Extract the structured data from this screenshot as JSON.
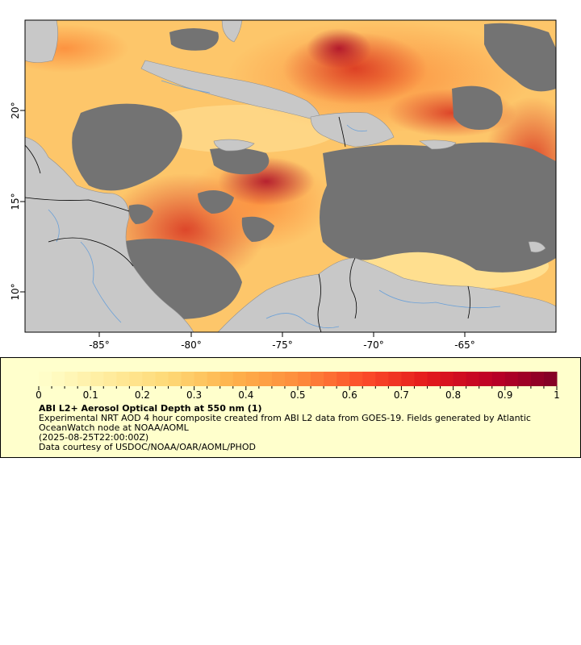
{
  "map": {
    "lon_ticks": [
      "-85°",
      "-80°",
      "-75°",
      "-70°",
      "-65°"
    ],
    "lat_ticks": [
      "10°",
      "15°",
      "20°"
    ],
    "colors": {
      "land": "#c8c8c8",
      "no_data": "#737373",
      "rivers": "#6aa0d8",
      "borders": "#000000",
      "frame": "#000000"
    }
  },
  "legend": {
    "title": "ABI L2+ Aerosol Optical Depth at 550 nm (1)",
    "line1": "Experimental NRT AOD 4 hour composite created from ABI L2 data from GOES-19. Fields generated by Atlantic OceanWatch node at NOAA/AOML",
    "line2": "(2025-08-25T22:00:00Z)",
    "line3": "Data courtesy of USDOC/NOAA/OAR/AOML/PHOD",
    "colorbar_labels": [
      "0",
      "0.1",
      "0.2",
      "0.3",
      "0.4",
      "0.5",
      "0.6",
      "0.7",
      "0.8",
      "0.9",
      "1"
    ],
    "colorbar_range": [
      0,
      1
    ],
    "colormap": [
      "#ffffcc",
      "#ffeda0",
      "#fed976",
      "#feb24c",
      "#fd8d3c",
      "#fc4e2a",
      "#e31a1c",
      "#bd0026",
      "#800026"
    ],
    "background": "#ffffcc"
  }
}
